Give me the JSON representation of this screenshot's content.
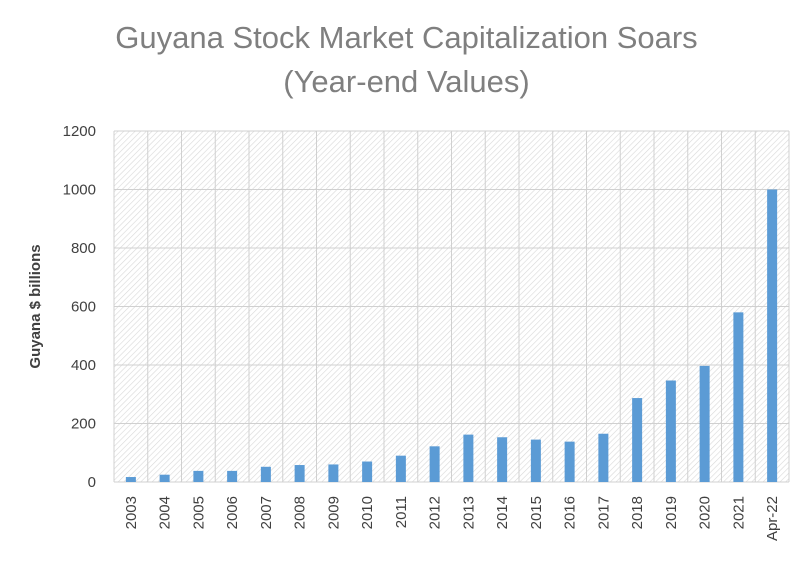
{
  "chart_data": {
    "type": "bar",
    "title": "Guyana Stock Market Capitalization Soars",
    "subtitle": "(Year-end Values)",
    "xlabel": "",
    "ylabel": "Guyana $ billions",
    "ylim": [
      0,
      1200
    ],
    "yticks": [
      0,
      200,
      400,
      600,
      800,
      1000,
      1200
    ],
    "grid": true,
    "legend": "none",
    "bar_color": "#5b9bd5",
    "categories": [
      "2003",
      "2004",
      "2005",
      "2006",
      "2007",
      "2008",
      "2009",
      "2010",
      "2011",
      "2012",
      "2013",
      "2014",
      "2015",
      "2016",
      "2017",
      "2018",
      "2019",
      "2020",
      "2021",
      "Apr-22"
    ],
    "values": [
      17,
      25,
      38,
      38,
      52,
      58,
      60,
      70,
      90,
      122,
      162,
      153,
      145,
      138,
      165,
      287,
      347,
      397,
      580,
      1000
    ]
  }
}
